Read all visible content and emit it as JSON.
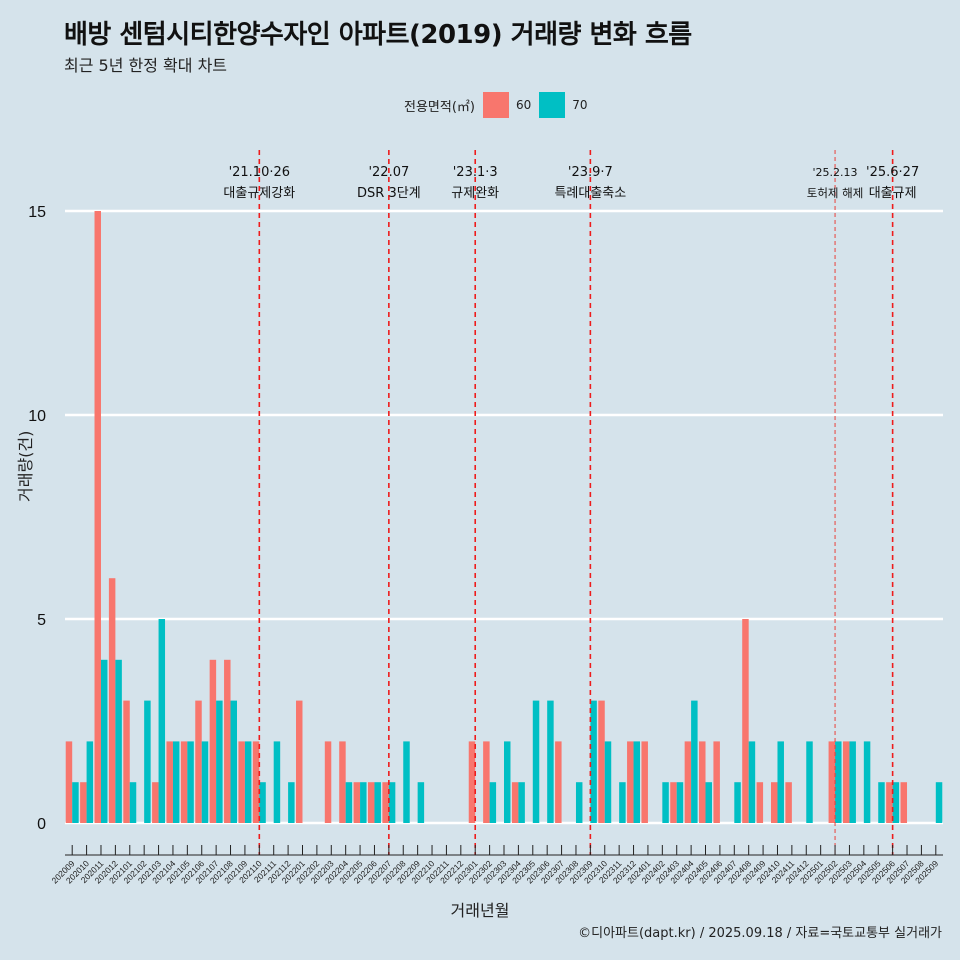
{
  "header": {
    "title": "배방 센텀시티한양수자인 아파트(2019) 거래량 변화 흐름",
    "subtitle": "최근 5년 한정 확대 차트"
  },
  "legend": {
    "title": "전용면적(㎡)",
    "items": [
      {
        "label": "60",
        "color": "#f8766d"
      },
      {
        "label": "70",
        "color": "#00bfc4"
      }
    ]
  },
  "caption": "©디아파트(dapt.kr) / 2025.09.18 / 자료=국토교통부 실거래가",
  "chart_data": {
    "type": "bar",
    "title": "배방 센텀시티한양수자인 아파트(2019) 거래량 변화 흐름",
    "subtitle": "최근 5년 한정 확대 차트",
    "xlabel": "거래년월",
    "ylabel": "거래량(건)",
    "ylim": [
      0,
      15.5
    ],
    "yticks": [
      0,
      5,
      10,
      15
    ],
    "grid": true,
    "legend_position": "top",
    "categories": [
      "202009",
      "202010",
      "202011",
      "202012",
      "202101",
      "202102",
      "202103",
      "202104",
      "202105",
      "202106",
      "202107",
      "202108",
      "202109",
      "202110",
      "202111",
      "202112",
      "202201",
      "202202",
      "202203",
      "202204",
      "202205",
      "202206",
      "202207",
      "202208",
      "202209",
      "202210",
      "202211",
      "202212",
      "202301",
      "202302",
      "202303",
      "202304",
      "202305",
      "202306",
      "202307",
      "202308",
      "202309",
      "202310",
      "202311",
      "202312",
      "202401",
      "202402",
      "202403",
      "202404",
      "202405",
      "202406",
      "202407",
      "202408",
      "202409",
      "202410",
      "202411",
      "202412",
      "202501",
      "202502",
      "202503",
      "202504",
      "202505",
      "202506",
      "202507",
      "202508",
      "202509"
    ],
    "series": [
      {
        "name": "60",
        "color": "#f8766d",
        "values": [
          2,
          1,
          15,
          6,
          3,
          0,
          1,
          2,
          2,
          3,
          4,
          4,
          2,
          2,
          0,
          0,
          3,
          0,
          2,
          2,
          1,
          1,
          1,
          0,
          0,
          0,
          0,
          0,
          2,
          2,
          0,
          1,
          0,
          0,
          2,
          0,
          0,
          3,
          0,
          2,
          2,
          0,
          1,
          2,
          2,
          2,
          0,
          5,
          1,
          1,
          1,
          0,
          0,
          2,
          2,
          0,
          0,
          1,
          1,
          0,
          0
        ]
      },
      {
        "name": "70",
        "color": "#00bfc4",
        "values": [
          1,
          2,
          4,
          4,
          1,
          3,
          5,
          2,
          2,
          2,
          3,
          3,
          2,
          1,
          2,
          1,
          0,
          0,
          0,
          1,
          1,
          1,
          1,
          2,
          1,
          0,
          0,
          0,
          0,
          1,
          2,
          1,
          3,
          3,
          0,
          1,
          3,
          2,
          1,
          2,
          0,
          1,
          1,
          3,
          1,
          0,
          1,
          2,
          0,
          2,
          0,
          2,
          0,
          2,
          2,
          2,
          1,
          1,
          0,
          0,
          1
        ]
      }
    ],
    "annotations": [
      {
        "at": "202110",
        "date": "'21.10·26",
        "label": "대출규제강화",
        "style": "dashed"
      },
      {
        "at": "202207",
        "date": "'22.07",
        "label": "DSR 3단계",
        "style": "dashed"
      },
      {
        "at": "202301",
        "date": "'23.1·3",
        "label": "규제완화",
        "style": "dashed"
      },
      {
        "at": "202309",
        "date": "'23.9·7",
        "label": "특례대출축소",
        "style": "dashed"
      },
      {
        "at": "202502",
        "date": "'25.2.13",
        "label": "토허제 해제",
        "style": "thin-dashed"
      },
      {
        "at": "202506",
        "date": "'25.6·27",
        "label": "대출규제",
        "style": "dashed"
      }
    ]
  }
}
